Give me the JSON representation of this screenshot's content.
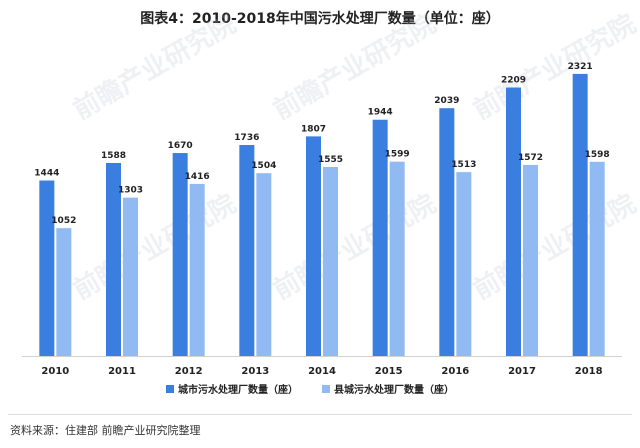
{
  "chart_data": {
    "type": "bar",
    "title": "图表4：2010-2018年中国污水处理厂数量（单位：座）",
    "categories": [
      "2010",
      "2011",
      "2012",
      "2013",
      "2014",
      "2015",
      "2016",
      "2017",
      "2018"
    ],
    "series": [
      {
        "name": "城市污水处理厂数量（座）",
        "color": "#3a7fe0",
        "values": [
          1444,
          1588,
          1670,
          1736,
          1807,
          1944,
          2039,
          2209,
          2321
        ]
      },
      {
        "name": "县城污水处理厂数量（座）",
        "color": "#92baf2",
        "values": [
          1052,
          1303,
          1416,
          1504,
          1555,
          1599,
          1513,
          1572,
          1598
        ]
      }
    ],
    "xlabel": "",
    "ylabel": "",
    "ylim": [
      0,
      2600
    ],
    "grid": false,
    "legend_position": "bottom"
  },
  "source": "资料来源：住建部 前瞻产业研究院整理",
  "watermark": "前瞻产业研究院"
}
